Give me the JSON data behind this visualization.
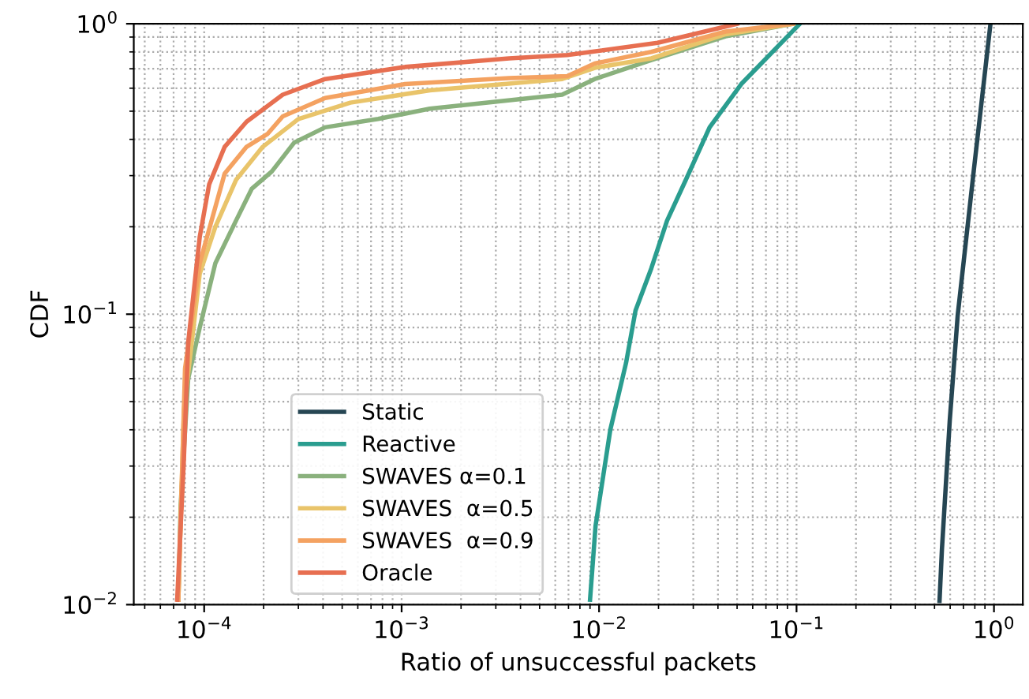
{
  "chart_data": {
    "type": "line",
    "xlabel": "Ratio of unsuccessful packets",
    "ylabel": "CDF",
    "log": "xy",
    "grid": true,
    "legend": "bottom left",
    "line_style": "solid",
    "marker": "none",
    "xlim": [
      4.4e-05,
      1.4
    ],
    "ylim": [
      0.01,
      1
    ],
    "xticks": [
      {
        "value": 0.0001,
        "label": "10$^{−4}$"
      },
      {
        "value": 0.001,
        "label": "10$^{−3}$"
      },
      {
        "value": 0.01,
        "label": "10$^{−2}$"
      },
      {
        "value": 0.1,
        "label": "10$^{−1}$"
      },
      {
        "value": 1,
        "label": "10$^{0}$"
      }
    ],
    "yticks": [
      {
        "value": 0.01,
        "label": "10$^{−2}$"
      },
      {
        "value": 0.1,
        "label": "10$^{−1}$"
      },
      {
        "value": 1,
        "label": "10$^{0}$"
      }
    ],
    "series": [
      {
        "name": "Static",
        "color": "#264653",
        "x": [
          0.53,
          0.545,
          0.597,
          0.655,
          0.787,
          0.96
        ],
        "values": [
          0.0103,
          0.0155,
          0.043,
          0.099,
          0.305,
          1
        ]
      },
      {
        "name": "Reactive",
        "color": "#2a9d8f",
        "x": [
          0.009,
          0.0096,
          0.0114,
          0.0137,
          0.0153,
          0.0184,
          0.0221,
          0.0275,
          0.0363,
          0.0525,
          0.104
        ],
        "values": [
          0.0104,
          0.0187,
          0.04,
          0.068,
          0.103,
          0.144,
          0.21,
          0.29,
          0.44,
          0.62,
          1
        ]
      },
      {
        "name": "SWAVES α=0.1",
        "color": "#8ab17d",
        "x": [
          7.4e-05,
          7.6e-05,
          8.3e-05,
          9.5e-05,
          0.000114,
          0.000145,
          0.000174,
          0.00022,
          0.000286,
          0.00041,
          0.00076,
          0.00139,
          0.0065,
          0.0095,
          0.0184,
          0.0437,
          0.096
        ],
        "values": [
          0.0104,
          0.022,
          0.06,
          0.09,
          0.15,
          0.21,
          0.27,
          0.31,
          0.39,
          0.44,
          0.47,
          0.51,
          0.57,
          0.645,
          0.75,
          0.905,
          1
        ]
      },
      {
        "name": "SWAVES  α=0.5",
        "color": "#e9c46a",
        "x": [
          7.4e-05,
          7.9e-05,
          9.5e-05,
          0.000114,
          0.000145,
          0.000198,
          0.0003,
          0.00055,
          0.00139,
          0.0065,
          0.0095,
          0.0184,
          0.0437,
          0.096
        ],
        "values": [
          0.0104,
          0.047,
          0.138,
          0.2,
          0.29,
          0.377,
          0.47,
          0.535,
          0.59,
          0.645,
          0.705,
          0.76,
          0.92,
          1
        ]
      },
      {
        "name": "SWAVES  α=0.9",
        "color": "#f4a261",
        "x": [
          7.4e-05,
          8e-05,
          9.5e-05,
          0.000127,
          0.000164,
          0.000209,
          0.00025,
          0.00041,
          0.00104,
          0.0035,
          0.0069,
          0.0095,
          0.0184,
          0.0437,
          0.096
        ],
        "values": [
          0.0104,
          0.065,
          0.15,
          0.305,
          0.377,
          0.417,
          0.48,
          0.555,
          0.62,
          0.65,
          0.66,
          0.73,
          0.8,
          0.94,
          1
        ]
      },
      {
        "name": "Oracle",
        "color": "#e76f51",
        "x": [
          7.3e-05,
          7.9e-05,
          8.3e-05,
          9.5e-05,
          0.000106,
          0.000127,
          0.000164,
          0.00025,
          0.00041,
          0.00104,
          0.0035,
          0.0069,
          0.0198,
          0.05
        ],
        "values": [
          0.0104,
          0.032,
          0.08,
          0.185,
          0.28,
          0.377,
          0.46,
          0.57,
          0.645,
          0.71,
          0.76,
          0.78,
          0.86,
          1
        ]
      }
    ]
  }
}
